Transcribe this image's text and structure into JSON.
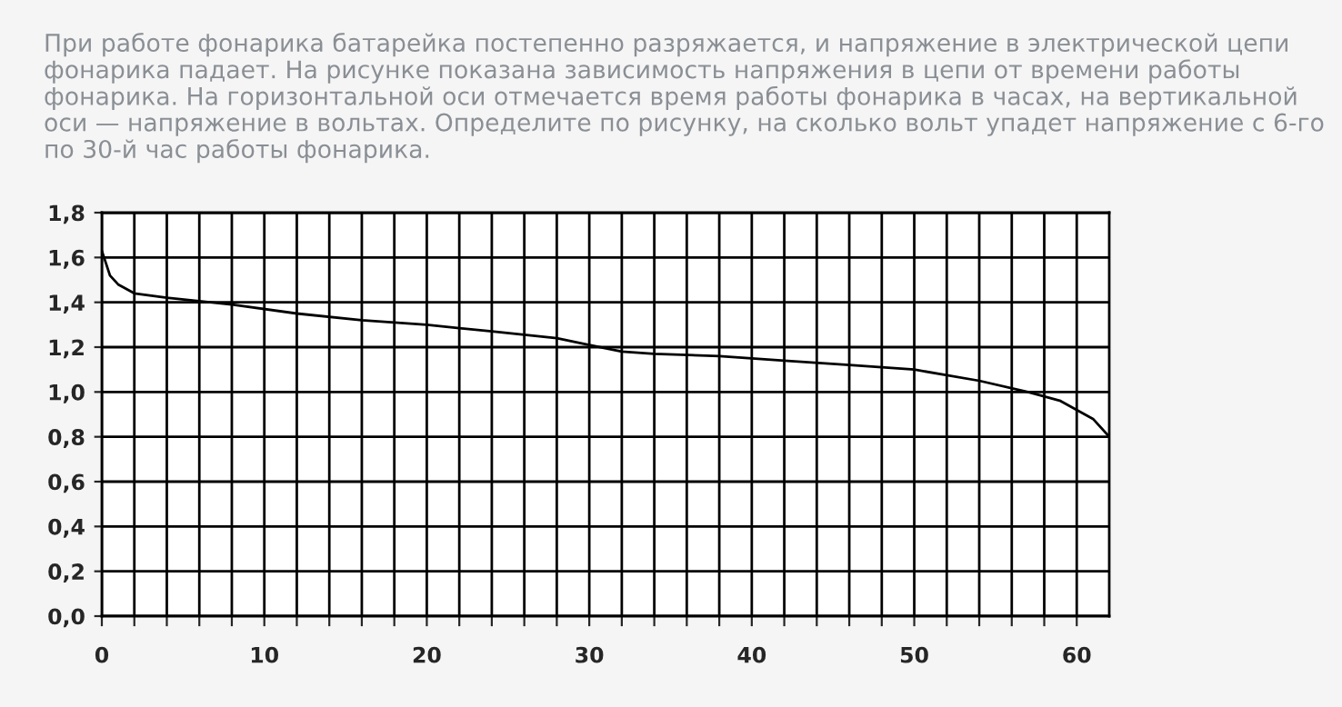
{
  "chart_data": {
    "type": "line",
    "title": "При работе фонарика батарейка постепенно разряжается, и напряжение в электрической цепи фонарика падает. На рисунке показана зависимость напряжения в цепи от времени работы фонарика. На горизонтальной оси отмечается время работы фонарика в часах, на вертикальной оси — напряжение в вольтах. Определите по рисунку, на сколько вольт упадет напряжение с 6-го по 30-й час работы фонарика.",
    "x": [
      0,
      0.5,
      1,
      2,
      4,
      8,
      12,
      16,
      20,
      24,
      28,
      30,
      32,
      34,
      38,
      42,
      46,
      50,
      54,
      57,
      59,
      61,
      62
    ],
    "series": [
      {
        "color": "#000000",
        "values": [
          1.63,
          1.52,
          1.48,
          1.44,
          1.42,
          1.39,
          1.35,
          1.32,
          1.3,
          1.27,
          1.24,
          1.21,
          1.18,
          1.17,
          1.16,
          1.14,
          1.12,
          1.1,
          1.05,
          1.0,
          0.96,
          0.88,
          0.8
        ]
      }
    ],
    "xlim": [
      0,
      62
    ],
    "xticks": [
      0,
      {
        "value": 2,
        "label": null
      },
      {
        "value": 4,
        "label": null
      },
      {
        "value": 6,
        "label": null
      },
      {
        "value": 8,
        "label": null
      },
      10,
      {
        "value": 12,
        "label": null
      },
      {
        "value": 14,
        "label": null
      },
      {
        "value": 16,
        "label": null
      },
      {
        "value": 18,
        "label": null
      },
      20,
      {
        "value": 22,
        "label": null
      },
      {
        "value": 24,
        "label": null
      },
      {
        "value": 26,
        "label": null
      },
      {
        "value": 28,
        "label": null
      },
      30,
      {
        "value": 32,
        "label": null
      },
      {
        "value": 34,
        "label": null
      },
      {
        "value": 36,
        "label": null
      },
      {
        "value": 38,
        "label": null
      },
      40,
      {
        "value": 42,
        "label": null
      },
      {
        "value": 44,
        "label": null
      },
      {
        "value": 46,
        "label": null
      },
      {
        "value": 48,
        "label": null
      },
      50,
      {
        "value": 52,
        "label": null
      },
      {
        "value": 54,
        "label": null
      },
      {
        "value": 56,
        "label": null
      },
      {
        "value": 58,
        "label": null
      },
      60
    ],
    "ylim": [
      0,
      1.8
    ],
    "yticks": [
      {
        "value": 0,
        "label": "0,0"
      },
      {
        "value": 0.2,
        "label": "0,2"
      },
      {
        "value": 0.4,
        "label": "0,4"
      },
      {
        "value": 0.6,
        "label": "0,6"
      },
      {
        "value": 0.8,
        "label": "0,8"
      },
      {
        "value": 1.0,
        "label": "1,0"
      },
      {
        "value": 1.2,
        "label": "1,2"
      },
      {
        "value": 1.4,
        "label": "1,4"
      },
      {
        "value": 1.6,
        "label": "1,6"
      },
      {
        "value": 1.8,
        "label": "1,8"
      }
    ],
    "grid": true,
    "marker": "none",
    "line_style": "solid"
  }
}
